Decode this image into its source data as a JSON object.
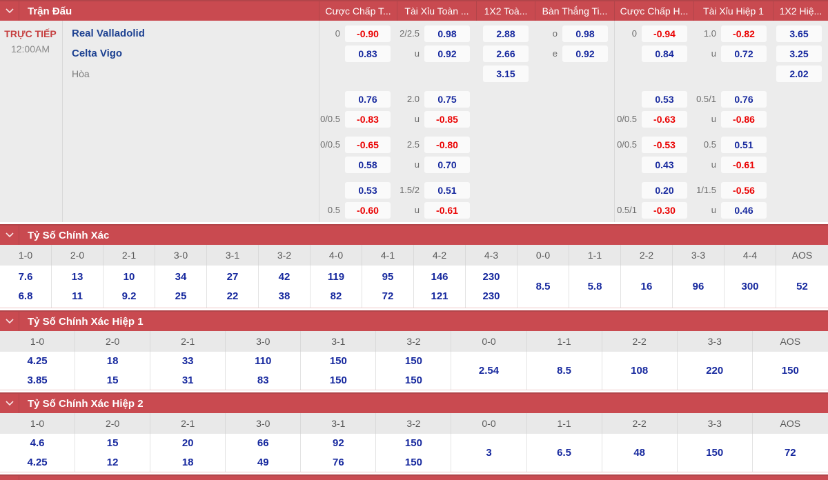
{
  "colors": {
    "header_red": "#c94a50",
    "header_red_dark": "#b2454a",
    "odds_blue": "#16289e",
    "odds_red": "#ea0000",
    "team_blue": "#1d4191",
    "live_red": "#c64040",
    "row_gray": "#ececec"
  },
  "match_section": {
    "title": "Trận Đấu",
    "columns": [
      {
        "key": "handicap-ft",
        "label": "Cược Chấp T..."
      },
      {
        "key": "over-under-ft",
        "label": "Tài Xỉu Toàn ..."
      },
      {
        "key": "1x2-ft",
        "label": "1X2 Toà..."
      },
      {
        "key": "goals-ft",
        "label": "Bàn Thắng Ti..."
      },
      {
        "key": "handicap-h1",
        "label": "Cược Chấp H..."
      },
      {
        "key": "over-under-h1",
        "label": "Tài Xỉu Hiệp 1"
      },
      {
        "key": "1x2-h1",
        "label": "1X2 Hiệ..."
      }
    ],
    "live_label": "TRỰC TIẾP",
    "time": "12:00AM",
    "home_team": "Real Valladolid",
    "away_team": "Celta Vigo",
    "draw_label": "Hòa",
    "rows": [
      {
        "gap_after": false,
        "cells": [
          {
            "label": "0",
            "value": "-0.90",
            "neg": true
          },
          {
            "label": "2/2.5",
            "value": "0.98"
          },
          {
            "value": "2.88"
          },
          {
            "label": "o",
            "value": "0.98"
          },
          {
            "label": "0",
            "value": "-0.94",
            "neg": true
          },
          {
            "label": "1.0",
            "value": "-0.82",
            "neg": true
          },
          {
            "value": "3.65"
          }
        ]
      },
      {
        "gap_after": false,
        "cells": [
          {
            "value": "0.83"
          },
          {
            "label": "u",
            "value": "0.92"
          },
          {
            "value": "2.66"
          },
          {
            "label": "e",
            "value": "0.92"
          },
          {
            "value": "0.84"
          },
          {
            "label": "u",
            "value": "0.72"
          },
          {
            "value": "3.25"
          }
        ]
      },
      {
        "gap_after": true,
        "cells": [
          null,
          null,
          {
            "value": "3.15"
          },
          null,
          null,
          null,
          {
            "value": "2.02"
          }
        ]
      },
      {
        "gap_after": false,
        "cells": [
          {
            "value": "0.76"
          },
          {
            "label": "2.0",
            "value": "0.75"
          },
          null,
          null,
          {
            "value": "0.53"
          },
          {
            "label": "0.5/1",
            "value": "0.76"
          },
          null
        ]
      },
      {
        "gap_after": true,
        "cells": [
          {
            "label": "0/0.5",
            "value": "-0.83",
            "neg": true
          },
          {
            "label": "u",
            "value": "-0.85",
            "neg": true
          },
          null,
          null,
          {
            "label": "0/0.5",
            "value": "-0.63",
            "neg": true
          },
          {
            "label": "u",
            "value": "-0.86",
            "neg": true
          },
          null
        ]
      },
      {
        "gap_after": false,
        "cells": [
          {
            "label": "0/0.5",
            "value": "-0.65",
            "neg": true
          },
          {
            "label": "2.5",
            "value": "-0.80",
            "neg": true
          },
          null,
          null,
          {
            "label": "0/0.5",
            "value": "-0.53",
            "neg": true
          },
          {
            "label": "0.5",
            "value": "0.51"
          },
          null
        ]
      },
      {
        "gap_after": true,
        "cells": [
          {
            "value": "0.58"
          },
          {
            "label": "u",
            "value": "0.70"
          },
          null,
          null,
          {
            "value": "0.43"
          },
          {
            "label": "u",
            "value": "-0.61",
            "neg": true
          },
          null
        ]
      },
      {
        "gap_after": false,
        "cells": [
          {
            "value": "0.53"
          },
          {
            "label": "1.5/2",
            "value": "0.51"
          },
          null,
          null,
          {
            "value": "0.20"
          },
          {
            "label": "1/1.5",
            "value": "-0.56",
            "neg": true
          },
          null
        ]
      },
      {
        "gap_after": false,
        "cells": [
          {
            "label": "0.5",
            "value": "-0.60",
            "neg": true
          },
          {
            "label": "u",
            "value": "-0.61",
            "neg": true
          },
          null,
          null,
          {
            "label": "0.5/1",
            "value": "-0.30",
            "neg": true
          },
          {
            "label": "u",
            "value": "0.46"
          },
          null
        ]
      }
    ]
  },
  "score_sections": [
    {
      "title": "Tỷ Số Chính Xác",
      "values_height": 62,
      "columns": [
        {
          "score": "1-0",
          "values": [
            "7.6",
            "6.8"
          ]
        },
        {
          "score": "2-0",
          "values": [
            "13",
            "11"
          ]
        },
        {
          "score": "2-1",
          "values": [
            "10",
            "9.2"
          ]
        },
        {
          "score": "3-0",
          "values": [
            "34",
            "25"
          ]
        },
        {
          "score": "3-1",
          "values": [
            "27",
            "22"
          ]
        },
        {
          "score": "3-2",
          "values": [
            "42",
            "38"
          ]
        },
        {
          "score": "4-0",
          "values": [
            "119",
            "82"
          ]
        },
        {
          "score": "4-1",
          "values": [
            "95",
            "72"
          ]
        },
        {
          "score": "4-2",
          "values": [
            "146",
            "121"
          ]
        },
        {
          "score": "4-3",
          "values": [
            "230",
            "230"
          ]
        },
        {
          "score": "0-0",
          "values": [
            "8.5"
          ]
        },
        {
          "score": "1-1",
          "values": [
            "5.8"
          ]
        },
        {
          "score": "2-2",
          "values": [
            "16"
          ]
        },
        {
          "score": "3-3",
          "values": [
            "96"
          ]
        },
        {
          "score": "4-4",
          "values": [
            "300"
          ]
        },
        {
          "score": "AOS",
          "values": [
            "52"
          ]
        }
      ]
    },
    {
      "title": "Tỷ Số Chính Xác Hiệp 1",
      "values_height": 56,
      "columns": [
        {
          "score": "1-0",
          "values": [
            "4.25",
            "3.85"
          ]
        },
        {
          "score": "2-0",
          "values": [
            "18",
            "15"
          ]
        },
        {
          "score": "2-1",
          "values": [
            "33",
            "31"
          ]
        },
        {
          "score": "3-0",
          "values": [
            "110",
            "83"
          ]
        },
        {
          "score": "3-1",
          "values": [
            "150",
            "150"
          ]
        },
        {
          "score": "3-2",
          "values": [
            "150",
            "150"
          ]
        },
        {
          "score": "0-0",
          "values": [
            "2.54"
          ]
        },
        {
          "score": "1-1",
          "values": [
            "8.5"
          ]
        },
        {
          "score": "2-2",
          "values": [
            "108"
          ]
        },
        {
          "score": "3-3",
          "values": [
            "220"
          ]
        },
        {
          "score": "AOS",
          "values": [
            "150"
          ]
        }
      ]
    },
    {
      "title": "Tỷ Số Chính Xác Hiệp 2",
      "values_height": 56,
      "columns": [
        {
          "score": "1-0",
          "values": [
            "4.6",
            "4.25"
          ]
        },
        {
          "score": "2-0",
          "values": [
            "15",
            "12"
          ]
        },
        {
          "score": "2-1",
          "values": [
            "20",
            "18"
          ]
        },
        {
          "score": "3-0",
          "values": [
            "66",
            "49"
          ]
        },
        {
          "score": "3-1",
          "values": [
            "92",
            "76"
          ]
        },
        {
          "score": "3-2",
          "values": [
            "150",
            "150"
          ]
        },
        {
          "score": "0-0",
          "values": [
            "3"
          ]
        },
        {
          "score": "1-1",
          "values": [
            "6.5"
          ]
        },
        {
          "score": "2-2",
          "values": [
            "48"
          ]
        },
        {
          "score": "3-3",
          "values": [
            "150"
          ]
        },
        {
          "score": "AOS",
          "values": [
            "72"
          ]
        }
      ]
    }
  ]
}
